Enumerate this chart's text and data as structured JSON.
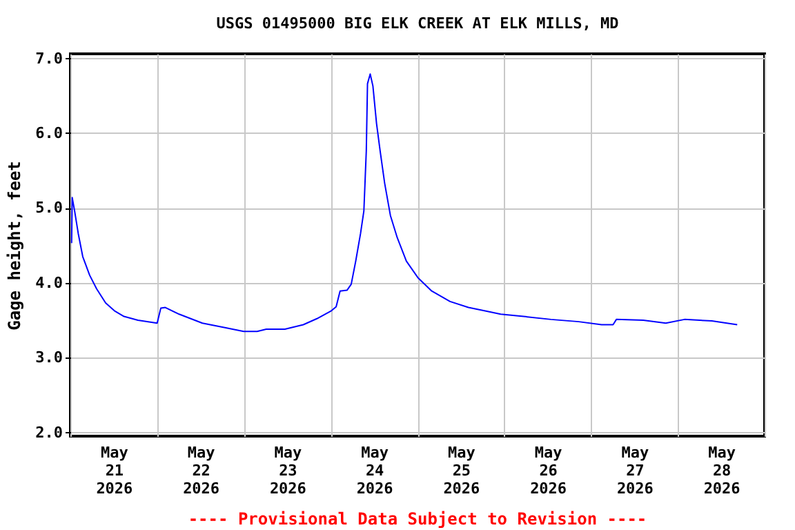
{
  "chart_data": {
    "type": "line",
    "title": "USGS 01495000 BIG ELK CREEK AT ELK MILLS, MD",
    "ylabel": "Gage height, feet",
    "annotations": [
      "---- Provisional Data Subject to Revision ----"
    ],
    "xlim": [
      "2026-05-21T00:00",
      "2026-05-29T00:00"
    ],
    "xticks": [
      {
        "value": "2026-05-21T00:00",
        "label": null
      },
      {
        "value": "2026-05-21T12:00",
        "label": "May\n21\n2026"
      },
      {
        "value": "2026-05-22T00:00",
        "label": null
      },
      {
        "value": "2026-05-22T12:00",
        "label": "May\n22\n2026"
      },
      {
        "value": "2026-05-23T00:00",
        "label": null
      },
      {
        "value": "2026-05-23T12:00",
        "label": "May\n23\n2026"
      },
      {
        "value": "2026-05-24T00:00",
        "label": null
      },
      {
        "value": "2026-05-24T12:00",
        "label": "May\n24\n2026"
      },
      {
        "value": "2026-05-25T00:00",
        "label": null
      },
      {
        "value": "2026-05-25T12:00",
        "label": "May\n25\n2026"
      },
      {
        "value": "2026-05-26T00:00",
        "label": null
      },
      {
        "value": "2026-05-26T12:00",
        "label": "May\n26\n2026"
      },
      {
        "value": "2026-05-27T00:00",
        "label": null
      },
      {
        "value": "2026-05-27T12:00",
        "label": "May\n27\n2026"
      },
      {
        "value": "2026-05-28T00:00",
        "label": null
      },
      {
        "value": "2026-05-28T12:00",
        "label": "May\n28\n2026"
      },
      {
        "value": "2026-05-29T00:00",
        "label": null
      }
    ],
    "ylim": [
      1.95,
      7.06
    ],
    "yticks": [
      {
        "value": 2,
        "label": "2.0"
      },
      {
        "value": 3,
        "label": "3.0"
      },
      {
        "value": 4,
        "label": "4.0"
      },
      {
        "value": 5,
        "label": "5.0"
      },
      {
        "value": 6,
        "label": "6.0"
      },
      {
        "value": 7,
        "label": "7.0"
      }
    ],
    "grid": true,
    "line_style": "solid",
    "x": [
      "2026-05-21T00:20",
      "2026-05-21T00:30",
      "2026-05-21T01:10",
      "2026-05-21T02:10",
      "2026-05-21T03:25",
      "2026-05-21T05:20",
      "2026-05-21T07:15",
      "2026-05-21T09:45",
      "2026-05-21T12:20",
      "2026-05-21T14:50",
      "2026-05-21T18:40",
      "2026-05-22T00:00",
      "2026-05-22T01:00",
      "2026-05-22T02:15",
      "2026-05-22T06:05",
      "2026-05-22T12:30",
      "2026-05-22T18:45",
      "2026-05-22T23:55",
      "2026-05-23T03:40",
      "2026-05-23T06:10",
      "2026-05-23T11:20",
      "2026-05-23T16:25",
      "2026-05-23T20:10",
      "2026-05-24T00:00",
      "2026-05-24T01:30",
      "2026-05-24T02:35",
      "2026-05-24T04:30",
      "2026-05-24T05:40",
      "2026-05-24T06:55",
      "2026-05-24T08:15",
      "2026-05-24T09:10",
      "2026-05-24T09:50",
      "2026-05-24T10:10",
      "2026-05-24T10:55",
      "2026-05-24T11:40",
      "2026-05-24T12:40",
      "2026-05-24T13:40",
      "2026-05-24T14:55",
      "2026-05-24T16:30",
      "2026-05-24T18:25",
      "2026-05-24T20:55",
      "2026-05-25T00:05",
      "2026-05-25T03:55",
      "2026-05-25T09:00",
      "2026-05-25T14:05",
      "2026-05-25T19:10",
      "2026-05-25T23:00",
      "2026-05-26T05:20",
      "2026-05-26T12:55",
      "2026-05-26T20:35",
      "2026-05-27T02:55",
      "2026-05-27T06:05",
      "2026-05-27T07:00",
      "2026-05-27T14:25",
      "2026-05-27T20:40",
      "2026-05-28T01:50",
      "2026-05-28T09:25",
      "2026-05-28T16:25"
    ],
    "series": [
      {
        "color": "#0000ff",
        "values": [
          4.53,
          5.14,
          4.96,
          4.66,
          4.35,
          4.1,
          3.92,
          3.73,
          3.62,
          3.55,
          3.5,
          3.46,
          3.66,
          3.67,
          3.58,
          3.46,
          3.4,
          3.35,
          3.35,
          3.38,
          3.38,
          3.44,
          3.52,
          3.62,
          3.68,
          3.89,
          3.9,
          3.98,
          4.29,
          4.66,
          4.96,
          5.76,
          6.66,
          6.79,
          6.63,
          6.13,
          5.76,
          5.33,
          4.9,
          4.6,
          4.29,
          4.07,
          3.89,
          3.75,
          3.67,
          3.62,
          3.58,
          3.55,
          3.51,
          3.48,
          3.44,
          3.44,
          3.51,
          3.5,
          3.46,
          3.51,
          3.49,
          3.44
        ]
      }
    ]
  }
}
